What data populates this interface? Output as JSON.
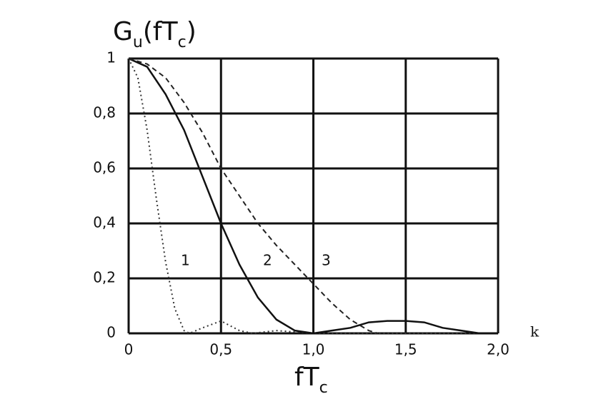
{
  "chart_data": {
    "type": "line",
    "y_label_parts": [
      "G",
      "u",
      "(fT",
      "c",
      ")"
    ],
    "x_label_parts": [
      "fT",
      "c"
    ],
    "x_axis_note": "k",
    "xlim": [
      0,
      2.0
    ],
    "ylim": [
      0,
      1
    ],
    "xticks": [
      {
        "value": 0,
        "label": "0"
      },
      {
        "value": 0.5,
        "label": "0,5"
      },
      {
        "value": 1.0,
        "label": "1,0"
      },
      {
        "value": 1.5,
        "label": "1,5"
      },
      {
        "value": 2.0,
        "label": "2,0"
      }
    ],
    "yticks": [
      {
        "value": 0,
        "label": "0"
      },
      {
        "value": 0.2,
        "label": "0,2"
      },
      {
        "value": 0.4,
        "label": "0,4"
      },
      {
        "value": 0.6,
        "label": "0,6"
      },
      {
        "value": 0.8,
        "label": "0,8"
      },
      {
        "value": 1,
        "label": "1"
      }
    ],
    "grid": true,
    "series": [
      {
        "name": "1",
        "color": "#333333",
        "style": "dotted",
        "x": [
          0,
          0.05,
          0.1,
          0.15,
          0.2,
          0.25,
          0.3,
          0.33,
          0.4,
          0.5,
          0.6,
          0.67,
          0.8,
          1.0,
          1.5,
          2.0
        ],
        "values": [
          1,
          0.93,
          0.74,
          0.49,
          0.26,
          0.09,
          0.01,
          0,
          0.02,
          0.045,
          0.01,
          0,
          0.01,
          0,
          0,
          0
        ]
      },
      {
        "name": "2",
        "color": "#111111",
        "style": "solid",
        "x": [
          0,
          0.1,
          0.2,
          0.3,
          0.4,
          0.5,
          0.6,
          0.7,
          0.8,
          0.9,
          1.0,
          1.1,
          1.2,
          1.3,
          1.4,
          1.5,
          1.6,
          1.7,
          1.8,
          1.9,
          2.0
        ],
        "values": [
          1,
          0.97,
          0.87,
          0.74,
          0.57,
          0.4,
          0.25,
          0.13,
          0.05,
          0.01,
          0,
          0.01,
          0.02,
          0.04,
          0.045,
          0.045,
          0.04,
          0.02,
          0.01,
          0,
          0
        ]
      },
      {
        "name": "3",
        "color": "#222222",
        "style": "dashed",
        "x": [
          0,
          0.1,
          0.2,
          0.3,
          0.4,
          0.5,
          0.6,
          0.7,
          0.8,
          0.9,
          1.0,
          1.1,
          1.2,
          1.3,
          1.35
        ],
        "values": [
          1,
          0.98,
          0.93,
          0.84,
          0.73,
          0.6,
          0.5,
          0.4,
          0.32,
          0.25,
          0.18,
          0.11,
          0.05,
          0.01,
          0
        ]
      }
    ]
  }
}
